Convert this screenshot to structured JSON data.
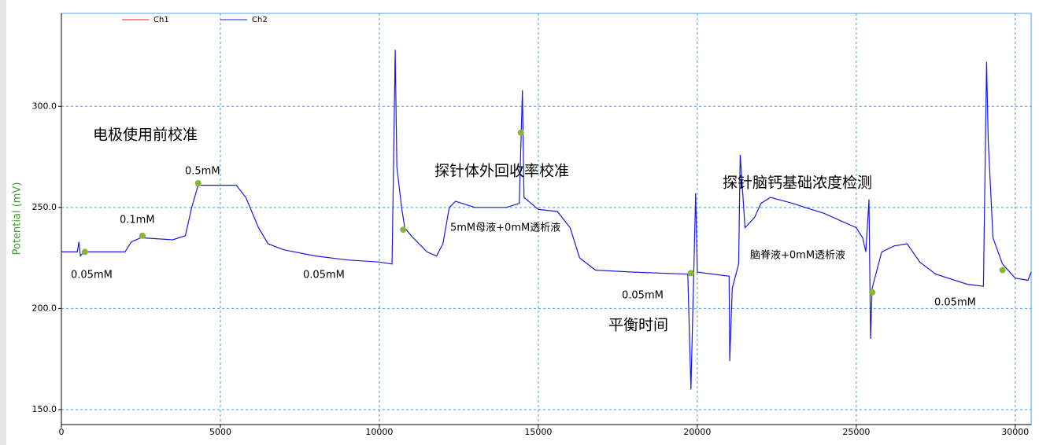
{
  "chart_data": {
    "type": "line",
    "y_label": "Potential (mV)",
    "xlim": [
      0,
      30500
    ],
    "ylim": [
      142.6,
      346
    ],
    "xticks": [
      0,
      5000,
      10000,
      15000,
      20000,
      25000,
      30000
    ],
    "yticks": [
      {
        "value": 150,
        "label": "150.0"
      },
      {
        "value": 200,
        "label": "200.0"
      },
      {
        "value": 250,
        "label": "250.0"
      },
      {
        "value": 300,
        "label": "300.0"
      }
    ],
    "grid": true,
    "series": [
      {
        "name": "Ch1",
        "color": "#e02020",
        "x": [],
        "values": []
      },
      {
        "name": "Ch2",
        "color": "#1a1ad8",
        "x": [
          0,
          500,
          550,
          600,
          700,
          2000,
          2200,
          2500,
          3500,
          3900,
          4100,
          4300,
          5500,
          5800,
          6200,
          6500,
          7000,
          8000,
          9000,
          10000,
          10400,
          10500,
          10550,
          10700,
          10800,
          11000,
          11500,
          11800,
          12000,
          12200,
          12400,
          13000,
          14000,
          14400,
          14500,
          14550,
          15000,
          15600,
          16000,
          16300,
          16800,
          18000,
          19700,
          19800,
          19950,
          20000,
          21000,
          21020,
          21100,
          21300,
          21350,
          21500,
          21800,
          22000,
          22300,
          23000,
          24000,
          25000,
          25200,
          25300,
          25400,
          25450,
          25500,
          25800,
          26200,
          26600,
          27000,
          27500,
          28500,
          29000,
          29100,
          29150,
          29300,
          29600,
          30000,
          30400,
          30500
        ],
        "values": [
          228,
          228,
          233,
          226,
          228,
          228,
          233,
          235,
          234,
          236,
          250,
          261,
          261,
          255,
          240,
          232,
          229,
          226,
          224,
          223,
          222,
          328,
          270,
          250,
          240,
          236,
          228,
          226,
          232,
          250,
          253,
          250,
          250,
          252,
          308,
          255,
          249,
          248,
          240,
          225,
          219,
          218,
          217,
          160,
          257,
          218,
          216,
          174,
          210,
          222,
          276,
          240,
          245,
          252,
          255,
          252,
          247,
          240,
          235,
          228,
          254,
          185,
          210,
          228,
          231,
          232,
          223,
          217,
          212,
          211,
          322,
          283,
          235,
          222,
          215,
          214,
          218
        ]
      }
    ],
    "markers": {
      "color": "#8ab43c",
      "x": [
        740,
        2550,
        4300,
        10750,
        14450,
        19800,
        25500,
        29600
      ],
      "values": [
        228,
        236,
        262,
        239,
        287,
        217.5,
        208,
        219
      ]
    },
    "annotations": [
      "0.05mM",
      "0.1mM",
      "0.5mM",
      "电极使用前校准",
      "0.05mM",
      "探针体外回收率校准",
      "5mM母液+0mM透析液",
      "0.05mM",
      "平衡时间",
      "探针脑钙基础浓度检测",
      "脑脊液+0mM透析液",
      "0.05mM"
    ]
  }
}
